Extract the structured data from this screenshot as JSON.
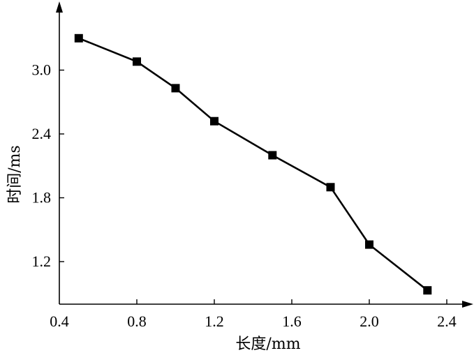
{
  "chart_data": {
    "type": "line",
    "title": "",
    "xlabel": "长度/mm",
    "ylabel": "时间/ms",
    "xlim": [
      0.4,
      2.7
    ],
    "ylim": [
      0.8,
      3.6
    ],
    "x_ticks": [
      0.4,
      0.8,
      1.2,
      1.6,
      2.0,
      2.4
    ],
    "y_ticks": [
      1.2,
      1.8,
      2.4,
      3.0
    ],
    "grid": false,
    "marker": "square",
    "series": [
      {
        "x": [
          0.5,
          0.8,
          1.0,
          1.2,
          1.5,
          1.8,
          2.0,
          2.3
        ],
        "y": [
          3.3,
          3.08,
          2.83,
          2.52,
          2.2,
          1.9,
          1.36,
          0.93
        ]
      }
    ]
  }
}
